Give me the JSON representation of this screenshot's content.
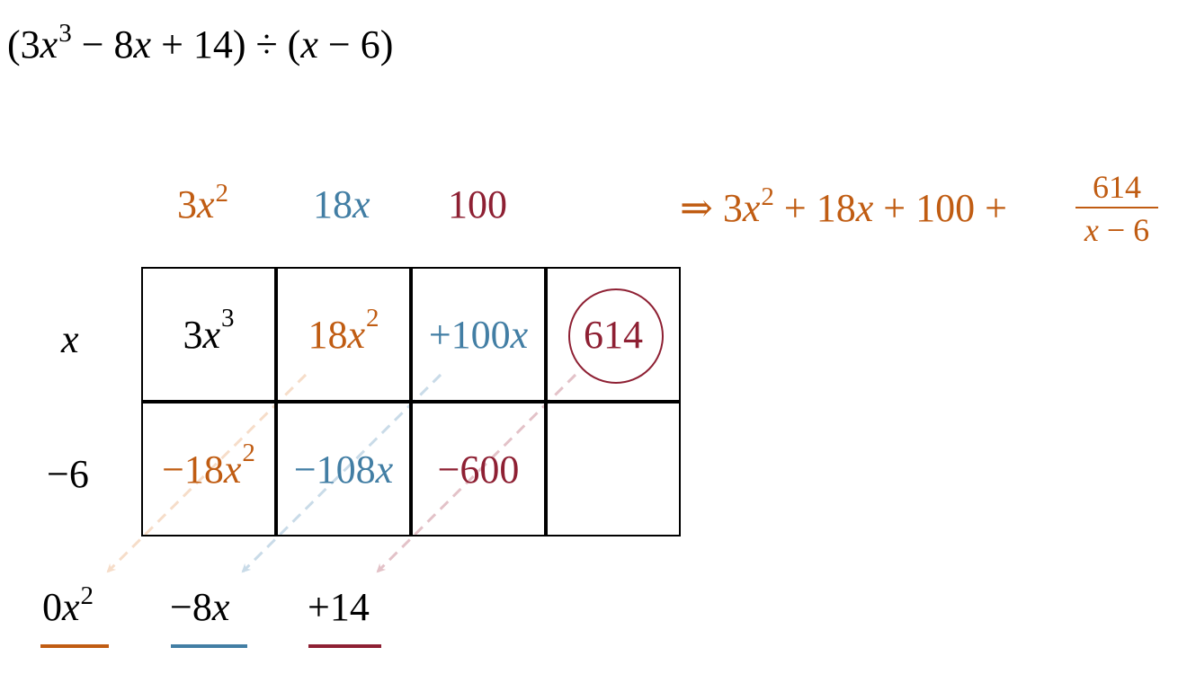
{
  "problem": {
    "open_paren": "(3",
    "var1": "x",
    "exp1": "3",
    "rest": " − 8",
    "var2": "x",
    "tail": " + 14) ÷ (",
    "var3": "x",
    "close": " − 6)"
  },
  "quotient_terms": [
    {
      "coef": "3",
      "var": "x",
      "exp": "2"
    },
    {
      "coef": "18",
      "var": "x"
    },
    {
      "coef": "100"
    }
  ],
  "result": {
    "arrow": "⇒",
    "coef1": " 3",
    "var1": "x",
    "exp1": "2",
    "plus1": " + 18",
    "var2": "x",
    "plus2": " + 100 +",
    "frac_num": "614",
    "frac_den_var": "x",
    "frac_den_rest": " − 6"
  },
  "row_labels": {
    "row1_var": "x",
    "row2": "−6"
  },
  "grid": {
    "row1": [
      {
        "coef": "3",
        "var": "x",
        "exp": "3"
      },
      {
        "coef": "18",
        "var": "x",
        "exp": "2"
      },
      {
        "coef": "+100",
        "var": "x"
      },
      {
        "coef": "614"
      }
    ],
    "row2": [
      {
        "coef": "−18",
        "var": "x",
        "exp": "2"
      },
      {
        "coef": "−108",
        "var": "x"
      },
      {
        "coef": "−600"
      }
    ]
  },
  "bottom_terms": [
    {
      "coef": "0",
      "var": "x",
      "exp": "2"
    },
    {
      "coef": "−8",
      "var": "x"
    },
    {
      "coef": "+14"
    }
  ],
  "colors": {
    "orange": "#c05c12",
    "blue": "#427ea4",
    "red": "#8e2033",
    "black": "#000000"
  }
}
